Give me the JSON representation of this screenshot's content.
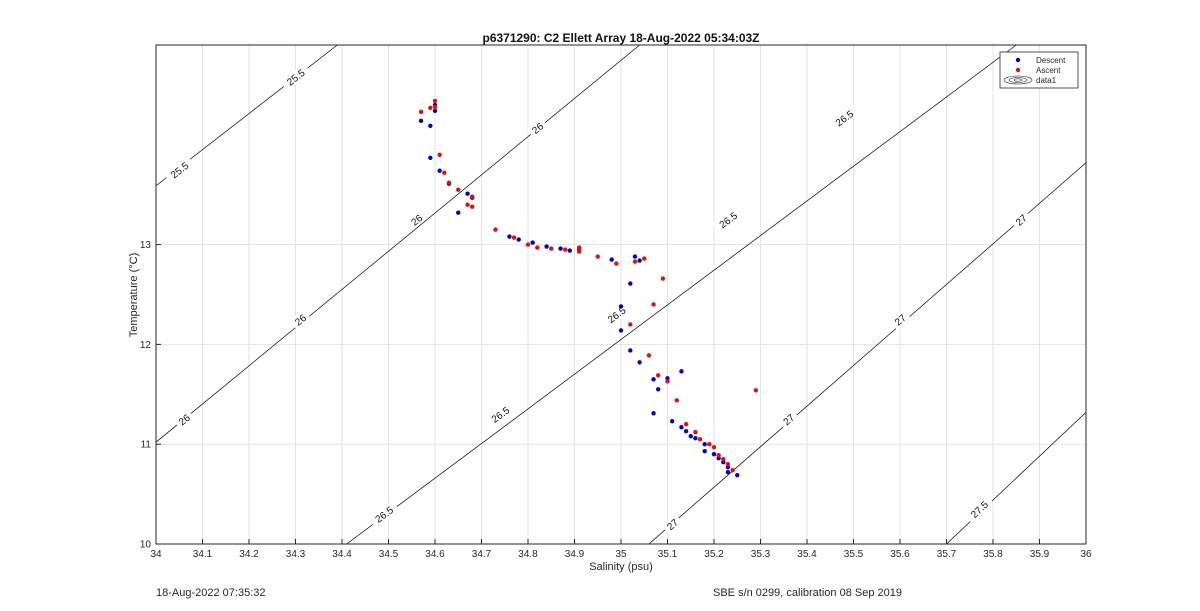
{
  "chart_data": {
    "type": "scatter",
    "title": "p6371290: C2 Ellett Array 18-Aug-2022 05:34:03Z",
    "xlabel": "Salinity (psu)",
    "ylabel": "Temperature (°C)",
    "xlim": [
      34,
      36
    ],
    "ylim": [
      10,
      15
    ],
    "grid": true,
    "legend_position": "top-right",
    "xticks": [
      "34",
      "34.1",
      "34.2",
      "34.3",
      "34.4",
      "34.5",
      "34.6",
      "34.7",
      "34.8",
      "34.9",
      "35",
      "35.1",
      "35.2",
      "35.3",
      "35.4",
      "35.5",
      "35.6",
      "35.7",
      "35.8",
      "35.9",
      "36"
    ],
    "yticks": [
      "10",
      "11",
      "12",
      "13"
    ],
    "legend": [
      "Descent",
      "Ascent",
      "data1"
    ],
    "colors": {
      "descent": "#0000cc",
      "ascent": "#e01010",
      "contour": "#000000",
      "grid": "#e3e3e3"
    },
    "contours": [
      {
        "label": "25.5",
        "points": [
          [
            34.0,
            13.59
          ],
          [
            34.39,
            15.0
          ]
        ],
        "label_positions": [
          [
            34.05,
            13.75
          ],
          [
            34.3,
            14.68
          ]
        ]
      },
      {
        "label": "26",
        "points": [
          [
            34.0,
            11.02
          ],
          [
            35.04,
            15.0
          ]
        ],
        "label_positions": [
          [
            34.06,
            11.25
          ],
          [
            34.31,
            12.25
          ],
          [
            34.56,
            13.25
          ],
          [
            34.82,
            14.17
          ]
        ]
      },
      {
        "label": "26.5",
        "points": [
          [
            34.41,
            10.0
          ],
          [
            35.85,
            15.0
          ]
        ],
        "label_positions": [
          [
            34.49,
            10.3
          ],
          [
            34.74,
            11.3
          ],
          [
            34.99,
            12.3
          ],
          [
            35.23,
            13.25
          ],
          [
            35.48,
            14.27
          ]
        ]
      },
      {
        "label": "27",
        "points": [
          [
            35.06,
            10.0
          ],
          [
            36.0,
            13.82
          ]
        ],
        "label_positions": [
          [
            35.11,
            10.2
          ],
          [
            35.36,
            11.25
          ],
          [
            35.6,
            12.25
          ],
          [
            35.86,
            13.25
          ]
        ]
      },
      {
        "label": "27.5",
        "points": [
          [
            35.7,
            10.0
          ],
          [
            36.0,
            11.32
          ]
        ],
        "label_positions": [
          [
            35.77,
            10.35
          ]
        ]
      }
    ],
    "series": [
      {
        "name": "Descent",
        "points": [
          [
            34.57,
            14.24
          ],
          [
            34.59,
            14.19
          ],
          [
            34.6,
            14.34
          ],
          [
            34.6,
            14.4
          ],
          [
            34.59,
            13.87
          ],
          [
            34.61,
            13.74
          ],
          [
            34.63,
            13.61
          ],
          [
            34.65,
            13.32
          ],
          [
            34.67,
            13.51
          ],
          [
            34.68,
            13.47
          ],
          [
            34.76,
            13.08
          ],
          [
            34.78,
            13.05
          ],
          [
            34.81,
            13.02
          ],
          [
            34.84,
            12.98
          ],
          [
            34.87,
            12.96
          ],
          [
            34.89,
            12.94
          ],
          [
            34.91,
            12.95
          ],
          [
            34.98,
            12.85
          ],
          [
            35.03,
            12.88
          ],
          [
            35.04,
            12.84
          ],
          [
            35.02,
            12.61
          ],
          [
            35.0,
            12.38
          ],
          [
            35.0,
            12.14
          ],
          [
            35.02,
            11.94
          ],
          [
            35.04,
            11.82
          ],
          [
            35.07,
            11.65
          ],
          [
            35.08,
            11.55
          ],
          [
            35.1,
            11.66
          ],
          [
            35.13,
            11.73
          ],
          [
            35.07,
            11.31
          ],
          [
            35.11,
            11.23
          ],
          [
            35.13,
            11.17
          ],
          [
            35.14,
            11.13
          ],
          [
            35.15,
            11.08
          ],
          [
            35.16,
            11.06
          ],
          [
            35.18,
            11.0
          ],
          [
            35.18,
            10.93
          ],
          [
            35.2,
            10.9
          ],
          [
            35.21,
            10.86
          ],
          [
            35.22,
            10.82
          ],
          [
            35.23,
            10.77
          ],
          [
            35.23,
            10.72
          ],
          [
            35.25,
            10.69
          ]
        ]
      },
      {
        "name": "Ascent",
        "points": [
          [
            34.57,
            14.33
          ],
          [
            34.59,
            14.37
          ],
          [
            34.6,
            14.44
          ],
          [
            34.6,
            14.38
          ],
          [
            34.61,
            13.9
          ],
          [
            34.62,
            13.72
          ],
          [
            34.63,
            13.62
          ],
          [
            34.65,
            13.55
          ],
          [
            34.68,
            13.48
          ],
          [
            34.68,
            13.38
          ],
          [
            34.67,
            13.4
          ],
          [
            34.73,
            13.15
          ],
          [
            34.77,
            13.07
          ],
          [
            34.8,
            13.0
          ],
          [
            34.82,
            12.97
          ],
          [
            34.85,
            12.96
          ],
          [
            34.88,
            12.95
          ],
          [
            34.91,
            12.93
          ],
          [
            34.91,
            12.97
          ],
          [
            34.95,
            12.88
          ],
          [
            34.99,
            12.81
          ],
          [
            35.03,
            12.83
          ],
          [
            35.05,
            12.86
          ],
          [
            35.09,
            12.66
          ],
          [
            35.07,
            12.4
          ],
          [
            35.02,
            12.2
          ],
          [
            35.06,
            11.89
          ],
          [
            35.08,
            11.69
          ],
          [
            35.1,
            11.63
          ],
          [
            35.12,
            11.44
          ],
          [
            35.14,
            11.2
          ],
          [
            35.16,
            11.12
          ],
          [
            35.17,
            11.05
          ],
          [
            35.19,
            11.0
          ],
          [
            35.2,
            10.97
          ],
          [
            35.21,
            10.89
          ],
          [
            35.22,
            10.85
          ],
          [
            35.23,
            10.8
          ],
          [
            35.24,
            10.74
          ],
          [
            35.29,
            11.54
          ]
        ]
      }
    ]
  },
  "footer": {
    "timestamp": "18-Aug-2022 07:35:32",
    "instrument": "SBE s/n 0299, calibration 08 Sep 2019"
  }
}
